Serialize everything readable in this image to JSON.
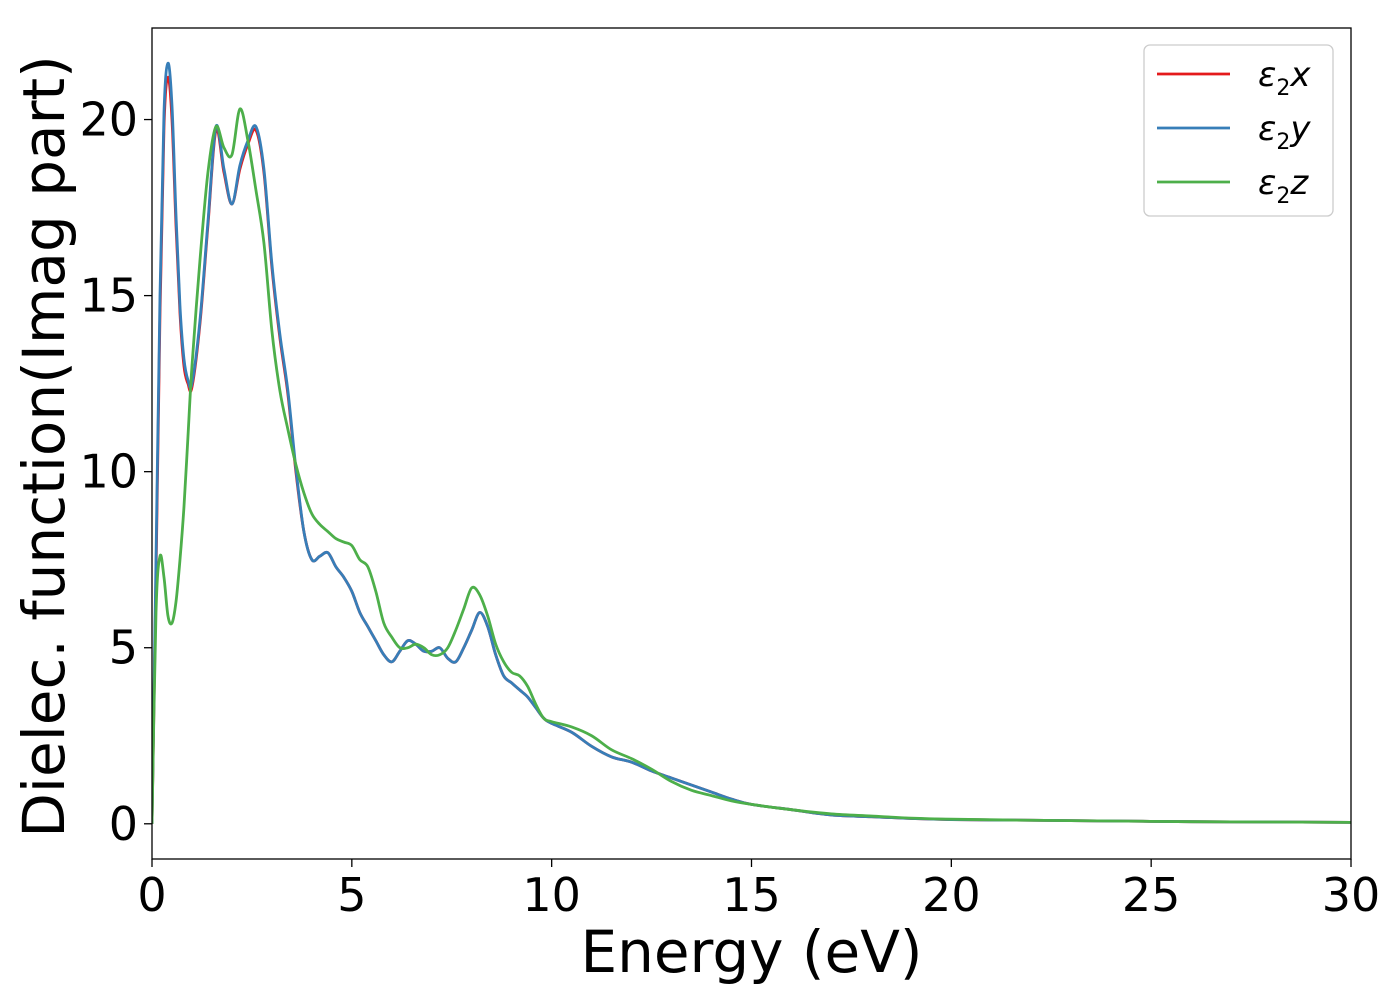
{
  "chart_data": {
    "type": "line",
    "title": "",
    "xlabel": "Energy (eV)",
    "ylabel": "Dielec. function(Imag part)",
    "xlim": [
      0,
      30
    ],
    "ylim": [
      -1,
      22.6
    ],
    "xticks": [
      0,
      5,
      10,
      15,
      20,
      25,
      30
    ],
    "yticks": [
      0,
      5,
      10,
      15,
      20
    ],
    "grid": false,
    "legend": {
      "placement": "top-right"
    },
    "series": [
      {
        "name": "ε2x",
        "legend_base": "ε",
        "legend_sub": "2",
        "legend_suffix": "x",
        "color": "#e41a1c",
        "x": [
          0,
          0.1,
          0.2,
          0.3,
          0.4,
          0.5,
          0.6,
          0.7,
          0.8,
          0.9,
          1.0,
          1.2,
          1.4,
          1.6,
          1.8,
          2.0,
          2.2,
          2.4,
          2.6,
          2.8,
          3.0,
          3.2,
          3.4,
          3.6,
          3.8,
          4.0,
          4.2,
          4.4,
          4.6,
          4.8,
          5.0,
          5.2,
          5.4,
          5.6,
          5.8,
          6.0,
          6.2,
          6.4,
          6.6,
          6.8,
          7.0,
          7.2,
          7.4,
          7.6,
          7.8,
          8.0,
          8.2,
          8.4,
          8.6,
          8.8,
          9.0,
          9.2,
          9.4,
          9.6,
          9.8,
          10.0,
          10.5,
          11.0,
          11.5,
          12.0,
          12.5,
          13.0,
          13.5,
          14.0,
          14.5,
          15.0,
          16.0,
          17.0,
          18.0,
          19.0,
          20.0,
          22.0,
          24.0,
          26.0,
          28.0,
          30.0
        ],
        "y": [
          0,
          7.0,
          14.5,
          19.8,
          21.2,
          20.0,
          17.0,
          14.5,
          13.0,
          12.5,
          12.4,
          14.2,
          17.0,
          19.7,
          18.5,
          17.6,
          18.6,
          19.3,
          19.7,
          18.5,
          15.8,
          13.8,
          12.2,
          10.0,
          8.3,
          7.5,
          7.6,
          7.7,
          7.3,
          7.0,
          6.6,
          6.0,
          5.6,
          5.2,
          4.8,
          4.6,
          4.9,
          5.2,
          5.1,
          4.9,
          4.9,
          5.0,
          4.7,
          4.6,
          5.0,
          5.5,
          6.0,
          5.6,
          4.8,
          4.2,
          4.0,
          3.8,
          3.6,
          3.3,
          3.0,
          2.85,
          2.6,
          2.2,
          1.9,
          1.75,
          1.5,
          1.3,
          1.1,
          0.9,
          0.7,
          0.55,
          0.4,
          0.25,
          0.2,
          0.15,
          0.12,
          0.1,
          0.08,
          0.06,
          0.05,
          0.04
        ]
      },
      {
        "name": "ε2y",
        "legend_base": "ε",
        "legend_sub": "2",
        "legend_suffix": "y",
        "color": "#377eb8",
        "x": [
          0,
          0.1,
          0.2,
          0.3,
          0.4,
          0.5,
          0.6,
          0.7,
          0.8,
          0.9,
          1.0,
          1.2,
          1.4,
          1.6,
          1.8,
          2.0,
          2.2,
          2.4,
          2.6,
          2.8,
          3.0,
          3.2,
          3.4,
          3.6,
          3.8,
          4.0,
          4.2,
          4.4,
          4.6,
          4.8,
          5.0,
          5.2,
          5.4,
          5.6,
          5.8,
          6.0,
          6.2,
          6.4,
          6.6,
          6.8,
          7.0,
          7.2,
          7.4,
          7.6,
          7.8,
          8.0,
          8.2,
          8.4,
          8.6,
          8.8,
          9.0,
          9.2,
          9.4,
          9.6,
          9.8,
          10.0,
          10.5,
          11.0,
          11.5,
          12.0,
          12.5,
          13.0,
          13.5,
          14.0,
          14.5,
          15.0,
          16.0,
          17.0,
          18.0,
          19.0,
          20.0,
          22.0,
          24.0,
          26.0,
          28.0,
          30.0
        ],
        "y": [
          0,
          7.5,
          15.0,
          20.2,
          21.6,
          20.4,
          17.3,
          14.7,
          13.2,
          12.6,
          12.5,
          14.3,
          17.1,
          19.8,
          18.6,
          17.6,
          18.7,
          19.4,
          19.8,
          18.6,
          15.9,
          13.9,
          12.3,
          10.1,
          8.3,
          7.5,
          7.6,
          7.7,
          7.3,
          7.0,
          6.6,
          6.0,
          5.6,
          5.2,
          4.8,
          4.6,
          4.9,
          5.2,
          5.1,
          4.9,
          4.9,
          5.0,
          4.7,
          4.6,
          5.0,
          5.5,
          6.0,
          5.6,
          4.8,
          4.2,
          4.0,
          3.8,
          3.6,
          3.3,
          3.0,
          2.85,
          2.6,
          2.2,
          1.9,
          1.75,
          1.5,
          1.3,
          1.1,
          0.9,
          0.7,
          0.55,
          0.4,
          0.25,
          0.2,
          0.15,
          0.12,
          0.1,
          0.08,
          0.06,
          0.05,
          0.04
        ]
      },
      {
        "name": "ε2z",
        "legend_base": "ε",
        "legend_sub": "2",
        "legend_suffix": "z",
        "color": "#4daf4a",
        "x": [
          0,
          0.1,
          0.2,
          0.3,
          0.4,
          0.5,
          0.6,
          0.7,
          0.8,
          0.9,
          1.0,
          1.2,
          1.4,
          1.6,
          1.8,
          2.0,
          2.2,
          2.4,
          2.6,
          2.8,
          3.0,
          3.2,
          3.4,
          3.6,
          3.8,
          4.0,
          4.2,
          4.4,
          4.6,
          4.8,
          5.0,
          5.2,
          5.4,
          5.6,
          5.8,
          6.0,
          6.2,
          6.4,
          6.6,
          6.8,
          7.0,
          7.2,
          7.4,
          7.6,
          7.8,
          8.0,
          8.2,
          8.4,
          8.6,
          8.8,
          9.0,
          9.2,
          9.4,
          9.6,
          9.8,
          10.0,
          10.5,
          11.0,
          11.5,
          12.0,
          12.5,
          13.0,
          13.5,
          14.0,
          14.5,
          15.0,
          16.0,
          17.0,
          18.0,
          19.0,
          20.0,
          22.0,
          24.0,
          26.0,
          28.0,
          30.0
        ],
        "y": [
          0,
          6.0,
          7.6,
          7.0,
          5.9,
          5.7,
          6.3,
          7.5,
          9.0,
          11.0,
          13.0,
          16.0,
          18.5,
          19.8,
          19.2,
          19.0,
          20.3,
          19.4,
          18.0,
          16.5,
          14.0,
          12.3,
          11.2,
          10.2,
          9.4,
          8.8,
          8.5,
          8.3,
          8.1,
          8.0,
          7.9,
          7.5,
          7.3,
          6.6,
          5.7,
          5.3,
          5.0,
          5.0,
          5.1,
          5.0,
          4.8,
          4.8,
          5.0,
          5.5,
          6.1,
          6.7,
          6.5,
          5.9,
          5.1,
          4.6,
          4.3,
          4.2,
          3.9,
          3.4,
          3.0,
          2.9,
          2.75,
          2.5,
          2.1,
          1.85,
          1.55,
          1.2,
          0.95,
          0.8,
          0.65,
          0.55,
          0.4,
          0.28,
          0.22,
          0.16,
          0.13,
          0.1,
          0.08,
          0.06,
          0.05,
          0.04
        ]
      }
    ]
  }
}
